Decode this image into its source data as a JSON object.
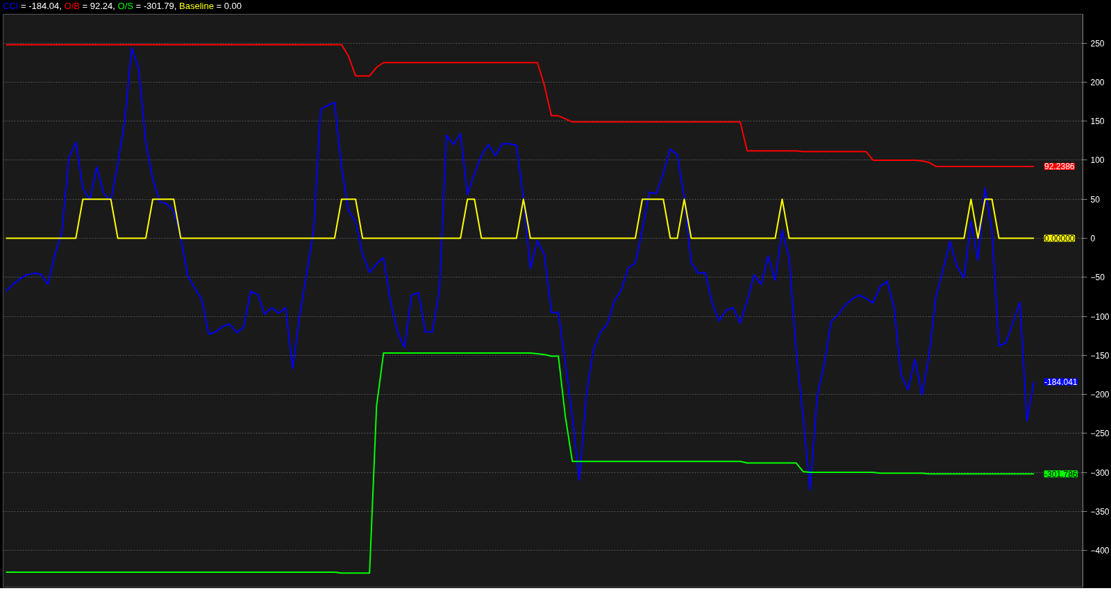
{
  "chart_data": {
    "type": "line",
    "categories": [
      null,
      null,
      null,
      null,
      null,
      null,
      null,
      null,
      null,
      null,
      null,
      null,
      null,
      null,
      null,
      null,
      null,
      null,
      null,
      null,
      null,
      null,
      null,
      null,
      null,
      null,
      null,
      null,
      null,
      null,
      null,
      null,
      null,
      null,
      null,
      null,
      null,
      null,
      null,
      null,
      null,
      null,
      null,
      null,
      null,
      null,
      null,
      null,
      null,
      null,
      null,
      null,
      null,
      null,
      null,
      null,
      null,
      null,
      null,
      null,
      null,
      null,
      null,
      null,
      null,
      null,
      null,
      null,
      null,
      null,
      null,
      null,
      null,
      null,
      null,
      null,
      null,
      null,
      null,
      null,
      null,
      null,
      null,
      null,
      null,
      null,
      null,
      null,
      null,
      null,
      null,
      null,
      null,
      null,
      null,
      null,
      null,
      null,
      null,
      null,
      null,
      null,
      null,
      null,
      null,
      null,
      null,
      null,
      null,
      null,
      null,
      null,
      null,
      null,
      null,
      null,
      null,
      null,
      null,
      null,
      null,
      null,
      null,
      null,
      null,
      null,
      null,
      null,
      null,
      null,
      null,
      null,
      null,
      null,
      null,
      null,
      null,
      null,
      null,
      null,
      null,
      null,
      null,
      null,
      null,
      null,
      null,
      null
    ],
    "series": [
      {
        "name": "CCI",
        "color": "#0000ff",
        "values": [
          -68,
          -59,
          -52,
          -47,
          -45,
          -46,
          -59,
          -21,
          7,
          103,
          123,
          64,
          49,
          91,
          57,
          48,
          95,
          151,
          244,
          217,
          123,
          76,
          47,
          44,
          35,
          1,
          -48,
          -64,
          -78,
          -123,
          -120,
          -113,
          -110,
          -121,
          -114,
          -68,
          -72,
          -97,
          -89,
          -96,
          -89,
          -167,
          -100,
          -46,
          10,
          165,
          170,
          174,
          90,
          36,
          21,
          -20,
          -44,
          -33,
          -25,
          -81,
          -120,
          -140,
          -73,
          -70,
          -120,
          -120,
          -65,
          132,
          120,
          134,
          56,
          83,
          106,
          120,
          106,
          121,
          121,
          119,
          52,
          -39,
          -3,
          -21,
          -95,
          -95,
          -160,
          -229,
          -310,
          -201,
          -143,
          -121,
          -110,
          -81,
          -66,
          -38,
          -32,
          10,
          59,
          57,
          83,
          114,
          107,
          53,
          -31,
          -45,
          -44,
          -83,
          -106,
          -92,
          -89,
          -109,
          -80,
          -47,
          -59,
          -23,
          -54,
          10,
          -25,
          -144,
          -229,
          -323,
          -203,
          -162,
          -107,
          -98,
          -86,
          -78,
          -73,
          -77,
          -83,
          -62,
          -55,
          -88,
          -175,
          -194,
          -155,
          -201,
          -151,
          -74,
          -41,
          -4,
          -36,
          -51,
          22,
          -28,
          64,
          10,
          -138,
          -134,
          -108,
          -82,
          -234,
          -184
        ]
      },
      {
        "name": "O/B",
        "color": "#ff0000",
        "values": [
          248,
          248,
          248,
          248,
          248,
          248,
          248,
          248,
          248,
          248,
          248,
          248,
          248,
          248,
          248,
          248,
          248,
          248,
          248,
          248,
          248,
          248,
          248,
          248,
          248,
          248,
          248,
          248,
          248,
          248,
          248,
          248,
          248,
          248,
          248,
          248,
          248,
          248,
          248,
          248,
          248,
          248,
          248,
          248,
          248,
          248,
          248,
          248,
          248,
          233,
          208,
          208,
          208,
          219,
          225,
          225,
          225,
          225,
          225,
          225,
          225,
          225,
          225,
          225,
          225,
          225,
          225,
          225,
          225,
          225,
          225,
          225,
          225,
          225,
          225,
          225,
          225,
          196,
          157,
          157,
          153,
          149,
          149,
          149,
          149,
          149,
          149,
          149,
          149,
          149,
          149,
          149,
          149,
          149,
          149,
          149,
          149,
          149,
          149,
          149,
          149,
          149,
          149,
          149,
          149,
          149,
          112,
          112,
          112,
          112,
          112,
          112,
          112,
          112,
          111,
          111,
          111,
          111,
          111,
          111,
          111,
          111,
          111,
          111,
          100,
          100,
          100,
          100,
          100,
          100,
          100,
          99,
          97,
          92,
          92,
          92,
          92,
          92,
          92,
          92,
          92,
          92,
          92,
          92,
          92,
          92,
          92,
          92
        ]
      },
      {
        "name": "O/S",
        "color": "#00ff00",
        "values": [
          -428,
          -428,
          -428,
          -428,
          -428,
          -428,
          -428,
          -428,
          -428,
          -428,
          -428,
          -428,
          -428,
          -428,
          -428,
          -428,
          -428,
          -428,
          -428,
          -428,
          -428,
          -428,
          -428,
          -428,
          -428,
          -428,
          -428,
          -428,
          -428,
          -428,
          -428,
          -428,
          -428,
          -428,
          -428,
          -428,
          -428,
          -428,
          -428,
          -428,
          -428,
          -428,
          -428,
          -428,
          -428,
          -428,
          -428,
          -428,
          -429,
          -429,
          -429,
          -429,
          -429,
          -215,
          -147,
          -147,
          -147,
          -147,
          -147,
          -147,
          -147,
          -147,
          -147,
          -147,
          -147,
          -147,
          -147,
          -147,
          -147,
          -147,
          -147,
          -147,
          -147,
          -147,
          -147,
          -147,
          -148,
          -149,
          -151,
          -151,
          -229,
          -286,
          -286,
          -286,
          -286,
          -286,
          -286,
          -286,
          -286,
          -286,
          -286,
          -286,
          -286,
          -286,
          -286,
          -286,
          -286,
          -286,
          -286,
          -286,
          -286,
          -286,
          -286,
          -286,
          -286,
          -286,
          -288,
          -288,
          -288,
          -288,
          -288,
          -288,
          -288,
          -288,
          -299,
          -300,
          -300,
          -300,
          -300,
          -300,
          -300,
          -300,
          -300,
          -300,
          -300,
          -301,
          -301,
          -301,
          -301,
          -301,
          -301,
          -301,
          -302,
          -302,
          -302,
          -302,
          -302,
          -302,
          -302,
          -302,
          -302,
          -302,
          -302,
          -302,
          -302,
          -302,
          -302,
          -302
        ]
      },
      {
        "name": "Baseline",
        "color": "#ffff00",
        "values": [
          0,
          0,
          0,
          0,
          0,
          0,
          0,
          0,
          0,
          0,
          0,
          50,
          50,
          50,
          50,
          50,
          0,
          0,
          0,
          0,
          0,
          50,
          50,
          50,
          50,
          0,
          0,
          0,
          0,
          0,
          0,
          0,
          0,
          0,
          0,
          0,
          0,
          0,
          0,
          0,
          0,
          0,
          0,
          0,
          0,
          0,
          0,
          0,
          50,
          50,
          50,
          0,
          0,
          0,
          0,
          0,
          0,
          0,
          0,
          0,
          0,
          0,
          0,
          0,
          0,
          0,
          50,
          50,
          0,
          0,
          0,
          0,
          0,
          0,
          50,
          0,
          0,
          0,
          0,
          0,
          0,
          0,
          0,
          0,
          0,
          0,
          0,
          0,
          0,
          0,
          0,
          50,
          50,
          50,
          50,
          0,
          0,
          50,
          0,
          0,
          0,
          0,
          0,
          0,
          0,
          0,
          0,
          0,
          0,
          0,
          0,
          50,
          0,
          0,
          0,
          0,
          0,
          0,
          0,
          0,
          0,
          0,
          0,
          0,
          0,
          0,
          0,
          0,
          0,
          0,
          0,
          0,
          0,
          0,
          0,
          0,
          0,
          0,
          50,
          0,
          50,
          50,
          0,
          0,
          0,
          0,
          0,
          0
        ]
      }
    ],
    "ylim": [
      -447,
      287
    ],
    "yticks": [
      -400,
      -350,
      -300,
      -250,
      -200,
      -150,
      -100,
      -50,
      0,
      50,
      100,
      150,
      200,
      250
    ],
    "grid": "y",
    "legend": "top left",
    "tick_labels": "y",
    "annotations": [
      "= -184.04,",
      "= 92.24,",
      "= -301.79,",
      "= 0.00",
      "-184.041",
      "92.2386",
      "-301.786",
      "0.00000"
    ]
  }
}
